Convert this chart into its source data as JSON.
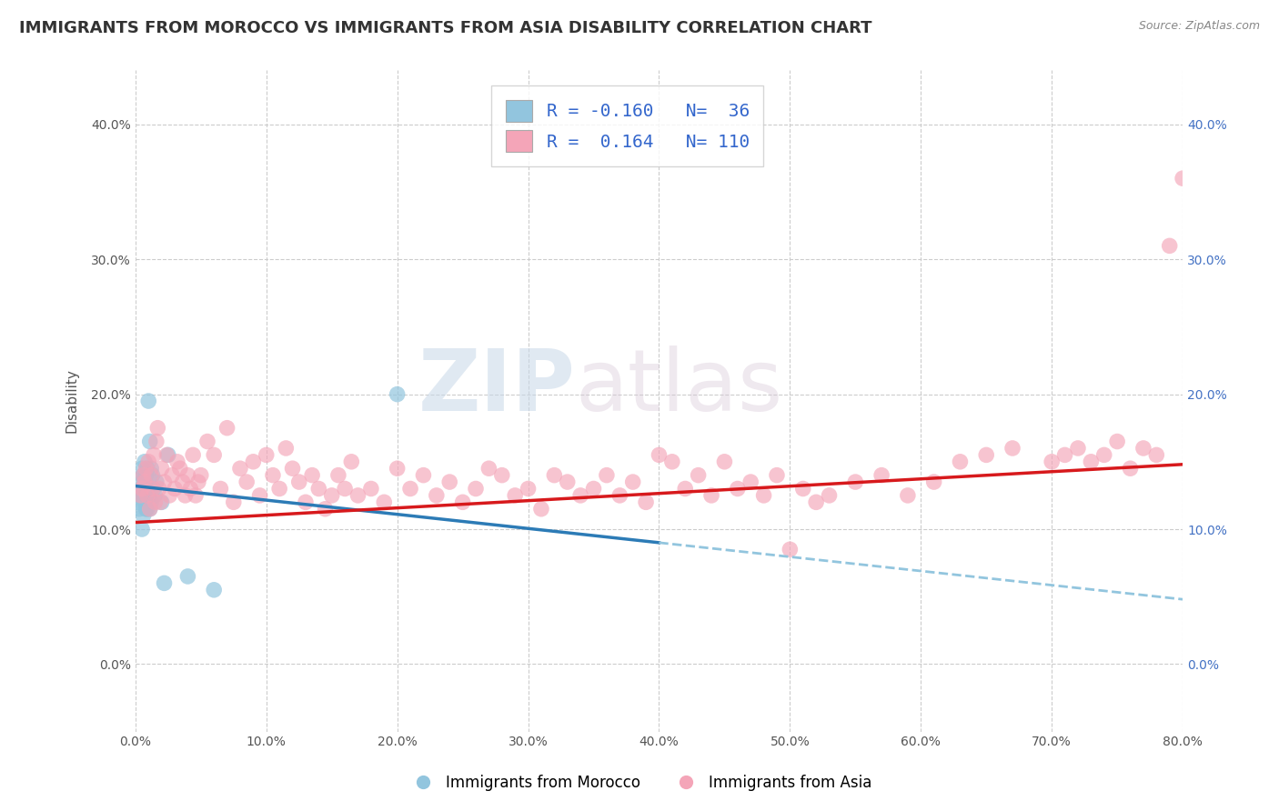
{
  "title": "IMMIGRANTS FROM MOROCCO VS IMMIGRANTS FROM ASIA DISABILITY CORRELATION CHART",
  "source": "Source: ZipAtlas.com",
  "ylabel": "Disability",
  "xlim": [
    0.0,
    0.8
  ],
  "ylim": [
    -0.05,
    0.44
  ],
  "xticks": [
    0.0,
    0.1,
    0.2,
    0.3,
    0.4,
    0.5,
    0.6,
    0.7,
    0.8
  ],
  "xticklabels": [
    "0.0%",
    "10.0%",
    "20.0%",
    "30.0%",
    "40.0%",
    "50.0%",
    "60.0%",
    "70.0%",
    "80.0%"
  ],
  "yticks": [
    0.0,
    0.1,
    0.2,
    0.3,
    0.4
  ],
  "yticklabels": [
    "0.0%",
    "10.0%",
    "20.0%",
    "30.0%",
    "40.0%"
  ],
  "color_morocco": "#92c5de",
  "color_asia": "#f4a5b8",
  "color_trend_morocco_solid": "#2c7bb6",
  "color_trend_morocco_dashed": "#92c5de",
  "color_trend_asia": "#d7191c",
  "watermark_zip": "ZIP",
  "watermark_atlas": "atlas",
  "background_color": "#ffffff",
  "grid_color": "#cccccc",
  "morocco_x": [
    0.002,
    0.003,
    0.004,
    0.004,
    0.005,
    0.005,
    0.005,
    0.006,
    0.006,
    0.006,
    0.007,
    0.007,
    0.007,
    0.008,
    0.008,
    0.008,
    0.009,
    0.009,
    0.009,
    0.01,
    0.01,
    0.01,
    0.011,
    0.011,
    0.012,
    0.012,
    0.013,
    0.014,
    0.015,
    0.016,
    0.02,
    0.022,
    0.025,
    0.04,
    0.06,
    0.2
  ],
  "morocco_y": [
    0.12,
    0.115,
    0.135,
    0.125,
    0.13,
    0.145,
    0.1,
    0.125,
    0.11,
    0.14,
    0.15,
    0.12,
    0.135,
    0.115,
    0.125,
    0.14,
    0.13,
    0.145,
    0.115,
    0.125,
    0.195,
    0.12,
    0.165,
    0.115,
    0.12,
    0.145,
    0.14,
    0.13,
    0.125,
    0.135,
    0.12,
    0.06,
    0.155,
    0.065,
    0.055,
    0.2
  ],
  "asia_x": [
    0.004,
    0.005,
    0.006,
    0.007,
    0.008,
    0.009,
    0.01,
    0.011,
    0.012,
    0.013,
    0.014,
    0.015,
    0.016,
    0.017,
    0.018,
    0.019,
    0.02,
    0.022,
    0.024,
    0.026,
    0.028,
    0.03,
    0.032,
    0.034,
    0.036,
    0.038,
    0.04,
    0.042,
    0.044,
    0.046,
    0.048,
    0.05,
    0.055,
    0.06,
    0.065,
    0.07,
    0.075,
    0.08,
    0.085,
    0.09,
    0.095,
    0.1,
    0.105,
    0.11,
    0.115,
    0.12,
    0.125,
    0.13,
    0.135,
    0.14,
    0.145,
    0.15,
    0.155,
    0.16,
    0.165,
    0.17,
    0.18,
    0.19,
    0.2,
    0.21,
    0.22,
    0.23,
    0.24,
    0.25,
    0.26,
    0.27,
    0.28,
    0.29,
    0.3,
    0.31,
    0.32,
    0.33,
    0.34,
    0.35,
    0.36,
    0.37,
    0.38,
    0.39,
    0.4,
    0.41,
    0.42,
    0.43,
    0.44,
    0.45,
    0.46,
    0.47,
    0.48,
    0.49,
    0.5,
    0.51,
    0.52,
    0.53,
    0.55,
    0.57,
    0.59,
    0.61,
    0.63,
    0.65,
    0.67,
    0.7,
    0.71,
    0.72,
    0.73,
    0.74,
    0.75,
    0.76,
    0.77,
    0.78,
    0.79,
    0.8
  ],
  "asia_y": [
    0.125,
    0.13,
    0.14,
    0.135,
    0.145,
    0.125,
    0.15,
    0.115,
    0.14,
    0.13,
    0.155,
    0.12,
    0.165,
    0.175,
    0.13,
    0.12,
    0.145,
    0.135,
    0.155,
    0.125,
    0.14,
    0.13,
    0.15,
    0.145,
    0.135,
    0.125,
    0.14,
    0.13,
    0.155,
    0.125,
    0.135,
    0.14,
    0.165,
    0.155,
    0.13,
    0.175,
    0.12,
    0.145,
    0.135,
    0.15,
    0.125,
    0.155,
    0.14,
    0.13,
    0.16,
    0.145,
    0.135,
    0.12,
    0.14,
    0.13,
    0.115,
    0.125,
    0.14,
    0.13,
    0.15,
    0.125,
    0.13,
    0.12,
    0.145,
    0.13,
    0.14,
    0.125,
    0.135,
    0.12,
    0.13,
    0.145,
    0.14,
    0.125,
    0.13,
    0.115,
    0.14,
    0.135,
    0.125,
    0.13,
    0.14,
    0.125,
    0.135,
    0.12,
    0.155,
    0.15,
    0.13,
    0.14,
    0.125,
    0.15,
    0.13,
    0.135,
    0.125,
    0.14,
    0.085,
    0.13,
    0.12,
    0.125,
    0.135,
    0.14,
    0.125,
    0.135,
    0.15,
    0.155,
    0.16,
    0.15,
    0.155,
    0.16,
    0.15,
    0.155,
    0.165,
    0.145,
    0.16,
    0.155,
    0.31,
    0.36
  ],
  "trend_morocco_x0": 0.0,
  "trend_morocco_y0": 0.132,
  "trend_morocco_x1": 0.4,
  "trend_morocco_y1": 0.09,
  "trend_morocco_dashed_x0": 0.4,
  "trend_morocco_dashed_y0": 0.09,
  "trend_morocco_dashed_x1": 0.8,
  "trend_morocco_dashed_y1": 0.048,
  "trend_asia_x0": 0.0,
  "trend_asia_y0": 0.105,
  "trend_asia_x1": 0.8,
  "trend_asia_y1": 0.148
}
